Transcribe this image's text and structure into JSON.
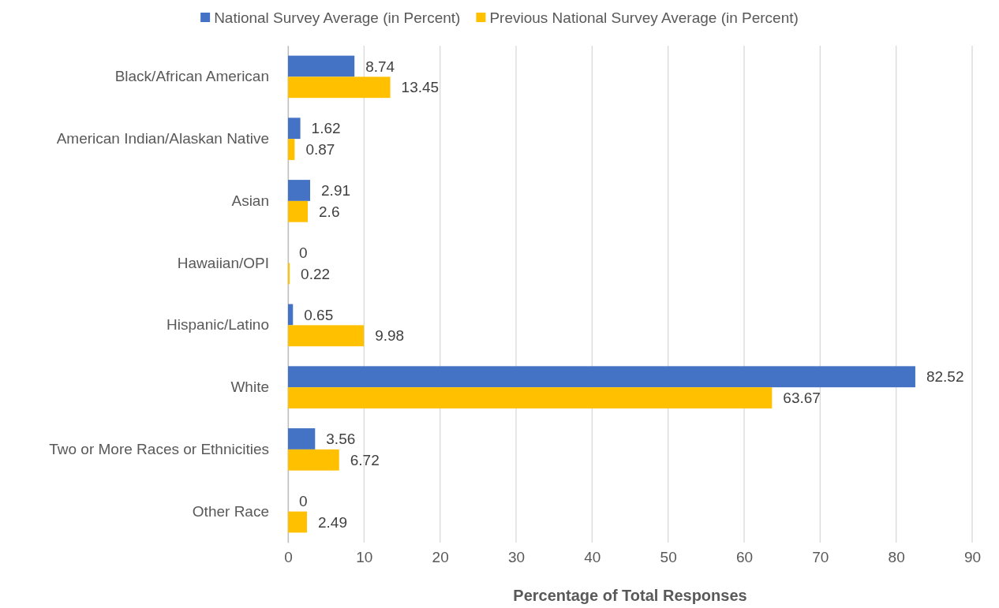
{
  "chart_data": {
    "type": "bar",
    "orientation": "horizontal",
    "xlabel": "Percentage of Total Responses",
    "categories": [
      "Black/African American",
      "American Indian/Alaskan Native",
      "Asian",
      "Hawaiian/OPI",
      "Hispanic/Latino",
      "White",
      "Two or More Races or Ethnicities",
      "Other Race"
    ],
    "series": [
      {
        "name": "National Survey Average (in Percent)",
        "color": "#4472c4",
        "values": [
          8.74,
          1.62,
          2.91,
          0,
          0.65,
          82.52,
          3.56,
          0
        ]
      },
      {
        "name": "Previous National Survey Average (in Percent)",
        "color": "#ffc000",
        "values": [
          13.45,
          0.87,
          2.6,
          0.22,
          9.98,
          63.67,
          6.72,
          2.49
        ]
      }
    ],
    "xlim": [
      0,
      90
    ],
    "xticks": [
      0,
      10,
      20,
      30,
      40,
      50,
      60,
      70,
      80,
      90
    ],
    "grid": "x",
    "legend": "top",
    "data_labels": true
  }
}
